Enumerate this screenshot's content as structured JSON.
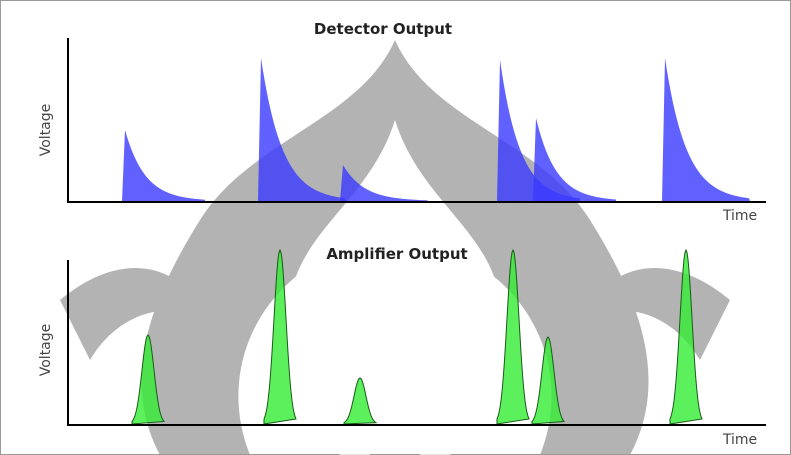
{
  "detector": {
    "title": "Detector Output",
    "y_label": "Voltage",
    "x_label": "Time"
  },
  "amplifier": {
    "title": "Amplifier Output",
    "y_label": "Voltage",
    "x_label": "Time"
  }
}
